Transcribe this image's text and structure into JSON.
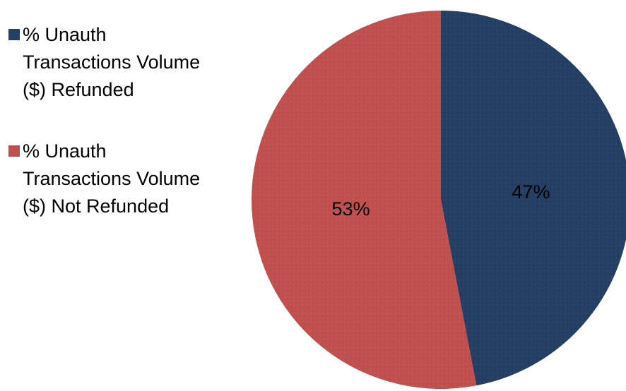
{
  "chart_data": {
    "type": "pie",
    "title": "",
    "legend_position": "left",
    "start_angle_deg": 0,
    "direction": "clockwise",
    "slices": [
      {
        "label": "% Unauth\nTransactions Volume\n($) Refunded",
        "value": 47,
        "display": "47%",
        "color": "#243F63"
      },
      {
        "label": "% Unauth\nTransactions Volume\n($) Not Refunded",
        "value": 53,
        "display": "53%",
        "color": "#C0504D"
      }
    ]
  }
}
